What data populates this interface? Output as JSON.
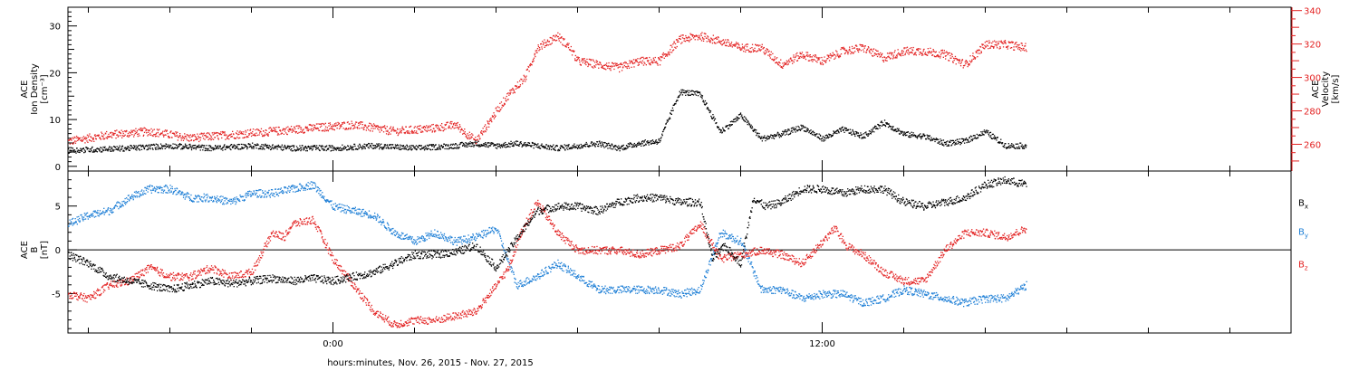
{
  "colors": {
    "density": "#000000",
    "velocity": "#e32222",
    "bx": "#000000",
    "by": "#1e7fd6",
    "bz": "#e32222"
  },
  "xaxis": {
    "label": "hours:minutes, Nov. 26, 2015 - Nov. 27, 2015",
    "range_hours": [
      -6.5,
      23.5
    ],
    "major_ticks": [
      {
        "hour": 0,
        "label": "0:00"
      },
      {
        "hour": 12,
        "label": "12:00"
      }
    ],
    "minor_ticks_hours": [
      -6,
      -4,
      -2,
      2,
      4,
      6,
      8,
      10,
      14,
      16,
      18,
      20,
      22
    ]
  },
  "chart_data": [
    {
      "type": "scatter",
      "panel": "plasma",
      "ylabel_left": [
        "ACE",
        "Ion Density",
        "[cm⁻³]"
      ],
      "ylabel_right": [
        "ACE",
        "Velocity",
        "[km/s]"
      ],
      "ylim_left": [
        -1,
        34
      ],
      "ylim_right": [
        244,
        342
      ],
      "left_ticks": [
        0,
        10,
        20,
        30
      ],
      "right_ticks": [
        260,
        280,
        300,
        320,
        340
      ],
      "series": [
        {
          "axis": "left",
          "hours": [
            -6.5,
            -5,
            -4,
            -3,
            -2,
            -1,
            0,
            1,
            2,
            3,
            3.5,
            4,
            4.5,
            5,
            5.5,
            6,
            6.5,
            7,
            7.5,
            8,
            8.5,
            9,
            9.5,
            10,
            10.5,
            11,
            11.5,
            12,
            12.5,
            13,
            13.5,
            14,
            14.5,
            15,
            15.5,
            16,
            16.5,
            17
          ],
          "values": [
            3.5,
            4.0,
            4.5,
            4.0,
            4.5,
            4.0,
            4.0,
            4.5,
            4.0,
            4.5,
            5.0,
            4.5,
            5.0,
            4.5,
            4.0,
            4.5,
            5.0,
            4.0,
            5.0,
            5.5,
            16.0,
            15.5,
            7.5,
            11.0,
            6.0,
            7.0,
            8.5,
            6.0,
            8.0,
            6.5,
            9.5,
            7.0,
            6.5,
            5.0,
            5.5,
            7.5,
            4.5,
            4.5
          ]
        },
        {
          "axis": "right",
          "hours": [
            -6.5,
            -5.5,
            -4.5,
            -3.5,
            -2.5,
            -1.5,
            -0.5,
            0.5,
            1.5,
            2.5,
            3.0,
            3.5,
            4.0,
            4.3,
            4.7,
            5.0,
            5.5,
            5.8,
            6.0,
            6.5,
            7.0,
            7.5,
            8.0,
            8.5,
            9.0,
            9.5,
            10.0,
            10.5,
            11.0,
            11.5,
            12.0,
            12.5,
            13.0,
            13.5,
            14.0,
            14.5,
            15.0,
            15.5,
            16.0,
            16.5,
            17.0
          ],
          "values": [
            262,
            266,
            268,
            264,
            266,
            268,
            270,
            272,
            268,
            270,
            272,
            262,
            280,
            290,
            300,
            318,
            325,
            318,
            310,
            308,
            306,
            310,
            310,
            323,
            325,
            322,
            318,
            318,
            308,
            314,
            310,
            316,
            318,
            312,
            316,
            316,
            314,
            308,
            320,
            320,
            318
          ]
        }
      ]
    },
    {
      "type": "scatter",
      "panel": "magnetic",
      "ylabel_left": [
        "ACE",
        "B",
        "[nT]"
      ],
      "ylim": [
        -9.5,
        9
      ],
      "ticks": [
        -5,
        0,
        5
      ],
      "legend_placement": "right",
      "series": [
        {
          "name": "Bx",
          "hours": [
            -6.5,
            -6,
            -5.5,
            -5,
            -4.5,
            -4,
            -3.5,
            -3,
            -2.5,
            -2,
            -1.5,
            -1,
            -0.5,
            0,
            0.5,
            1,
            1.5,
            2,
            2.5,
            3,
            3.5,
            4,
            4.3,
            4.6,
            5,
            5.5,
            6,
            6.5,
            7,
            7.5,
            8,
            8.5,
            9,
            9.3,
            9.6,
            10,
            10.3,
            10.6,
            11,
            11.5,
            12,
            12.5,
            13,
            13.5,
            14,
            14.5,
            15,
            15.5,
            16,
            16.5,
            17
          ],
          "values": [
            -0.5,
            -1.5,
            -3.0,
            -3.5,
            -4.0,
            -4.5,
            -4.0,
            -3.5,
            -3.8,
            -3.5,
            -3.2,
            -3.5,
            -3.2,
            -3.5,
            -3.0,
            -2.5,
            -1.5,
            -0.5,
            -0.5,
            -0.2,
            0.5,
            -2.0,
            0.0,
            2.0,
            4.5,
            5.0,
            5.0,
            4.5,
            5.5,
            6.0,
            6.0,
            5.5,
            5.5,
            -1.0,
            0.5,
            -1.5,
            6.0,
            5.0,
            5.5,
            7.0,
            7.0,
            6.5,
            7.0,
            7.0,
            5.5,
            5.0,
            5.5,
            6.0,
            7.5,
            8.0,
            7.5
          ]
        },
        {
          "name": "By",
          "hours": [
            -6.5,
            -6,
            -5.5,
            -5,
            -4.5,
            -4,
            -3.5,
            -3,
            -2.5,
            -2,
            -1.5,
            -1,
            -0.5,
            0,
            0.5,
            1,
            1.5,
            2,
            2.5,
            3,
            3.5,
            4,
            4.5,
            5,
            5.5,
            6,
            6.5,
            7,
            7.5,
            8,
            8.5,
            9,
            9.5,
            10,
            10.5,
            11,
            11.5,
            12,
            12.5,
            13,
            13.5,
            14,
            14.5,
            15,
            15.5,
            16,
            16.5,
            17
          ],
          "values": [
            3.0,
            4.0,
            4.5,
            6.0,
            7.0,
            7.0,
            6.0,
            6.0,
            5.5,
            6.5,
            6.5,
            7.0,
            7.5,
            5.0,
            4.5,
            4.0,
            2.0,
            1.0,
            2.0,
            1.0,
            1.5,
            2.5,
            -4.0,
            -3.0,
            -1.5,
            -3.0,
            -4.5,
            -4.5,
            -4.5,
            -4.5,
            -5.0,
            -4.5,
            2.0,
            1.0,
            -4.5,
            -4.5,
            -5.5,
            -5.0,
            -5.0,
            -6.0,
            -5.5,
            -4.5,
            -5.0,
            -5.5,
            -6.0,
            -5.5,
            -5.5,
            -4.0
          ]
        },
        {
          "name": "Bz",
          "hours": [
            -6.5,
            -6,
            -5.5,
            -5,
            -4.5,
            -4,
            -3.5,
            -3,
            -2.5,
            -2,
            -1.5,
            -1.2,
            -1,
            -0.5,
            0,
            0.5,
            1,
            1.5,
            2,
            2.5,
            3,
            3.5,
            4,
            4.3,
            4.6,
            5,
            5.5,
            6,
            6.5,
            7,
            7.5,
            8,
            8.5,
            9,
            9.5,
            10,
            10.5,
            11,
            11.5,
            12,
            12.3,
            12.6,
            13,
            13.5,
            14,
            14.5,
            15,
            15.5,
            16,
            16.5,
            17
          ],
          "values": [
            -5.0,
            -5.5,
            -4.0,
            -3.5,
            -2.0,
            -3.0,
            -3.0,
            -2.0,
            -3.0,
            -2.5,
            2.0,
            1.5,
            3.0,
            3.5,
            -1.0,
            -4.0,
            -7.0,
            -8.5,
            -8.0,
            -8.0,
            -7.5,
            -7.0,
            -4.0,
            -2.0,
            2.0,
            5.5,
            2.0,
            0.0,
            0.0,
            0.0,
            -0.5,
            0.0,
            0.5,
            3.0,
            -1.0,
            -0.5,
            0.0,
            -0.5,
            -1.5,
            1.0,
            2.5,
            0.5,
            -0.5,
            -2.5,
            -3.5,
            -3.5,
            0.0,
            2.0,
            2.0,
            1.5,
            2.5
          ]
        }
      ]
    }
  ]
}
